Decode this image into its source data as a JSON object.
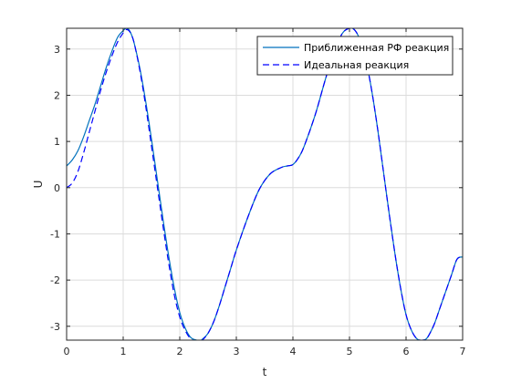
{
  "chart_data": {
    "type": "line",
    "title": "",
    "xlabel": "t",
    "ylabel": "U",
    "xlim": [
      0,
      7
    ],
    "ylim": [
      -3.3,
      3.45
    ],
    "xticks": [
      0,
      1,
      2,
      3,
      4,
      5,
      6,
      7
    ],
    "yticks": [
      -3,
      -2,
      -1,
      0,
      1,
      2,
      3
    ],
    "grid": true,
    "legend_position": "top-right",
    "series": [
      {
        "name": "Приближенная РФ реакция",
        "color": "#0072BD",
        "line_style": "solid",
        "x": [
          0,
          0.1,
          0.2,
          0.3,
          0.4,
          0.5,
          0.6,
          0.7,
          0.8,
          0.9,
          1.0,
          1.05,
          1.1,
          1.15,
          1.2,
          1.3,
          1.4,
          1.5,
          1.6,
          1.7,
          1.8,
          1.9,
          2.0,
          2.1,
          2.2,
          2.3,
          2.35,
          2.4,
          2.5,
          2.6,
          2.7,
          2.8,
          2.9,
          3.0,
          3.2,
          3.4,
          3.6,
          3.8,
          3.9,
          4.0,
          4.1,
          4.2,
          4.4,
          4.6,
          4.8,
          4.9,
          5.0,
          5.05,
          5.1,
          5.15,
          5.2,
          5.3,
          5.4,
          5.5,
          5.6,
          5.7,
          5.8,
          5.9,
          6.0,
          6.1,
          6.2,
          6.3,
          6.35,
          6.4,
          6.5,
          6.6,
          6.7,
          6.8,
          6.9,
          7.0
        ],
        "y": [
          0.47,
          0.6,
          0.8,
          1.1,
          1.45,
          1.8,
          2.2,
          2.6,
          2.95,
          3.25,
          3.4,
          3.45,
          3.42,
          3.3,
          3.1,
          2.55,
          1.85,
          1.05,
          0.2,
          -0.65,
          -1.45,
          -2.15,
          -2.7,
          -3.05,
          -3.25,
          -3.3,
          -3.32,
          -3.28,
          -3.15,
          -2.9,
          -2.55,
          -2.15,
          -1.75,
          -1.35,
          -0.65,
          -0.05,
          0.3,
          0.44,
          0.47,
          0.5,
          0.65,
          0.9,
          1.6,
          2.45,
          3.15,
          3.38,
          3.45,
          3.45,
          3.4,
          3.3,
          3.15,
          2.7,
          2.05,
          1.25,
          0.35,
          -0.55,
          -1.4,
          -2.15,
          -2.75,
          -3.1,
          -3.28,
          -3.3,
          -3.28,
          -3.2,
          -2.95,
          -2.6,
          -2.25,
          -1.9,
          -1.55,
          -1.5
        ]
      },
      {
        "name": "Идеальная реакция",
        "color": "#0000FF",
        "line_style": "dashed",
        "x": [
          0,
          0.1,
          0.2,
          0.3,
          0.4,
          0.5,
          0.6,
          0.7,
          0.8,
          0.9,
          1.0,
          1.05,
          1.1,
          1.15,
          1.2,
          1.3,
          1.4,
          1.5,
          1.6,
          1.7,
          1.8,
          1.9,
          2.0,
          2.1,
          2.2,
          2.3,
          2.35,
          2.4,
          2.5,
          2.6,
          2.7,
          2.8,
          2.9,
          3.0,
          3.2,
          3.4,
          3.6,
          3.8,
          3.9,
          4.0,
          4.1,
          4.2,
          4.4,
          4.6,
          4.8,
          4.9,
          5.0,
          5.05,
          5.1,
          5.15,
          5.2,
          5.3,
          5.4,
          5.5,
          5.6,
          5.7,
          5.8,
          5.9,
          6.0,
          6.1,
          6.2,
          6.3,
          6.35,
          6.4,
          6.5,
          6.6,
          6.7,
          6.8,
          6.9,
          7.0
        ],
        "y": [
          0.0,
          0.1,
          0.35,
          0.75,
          1.2,
          1.65,
          2.1,
          2.5,
          2.85,
          3.15,
          3.35,
          3.42,
          3.4,
          3.3,
          3.1,
          2.5,
          1.75,
          0.9,
          0.05,
          -0.8,
          -1.6,
          -2.3,
          -2.8,
          -3.1,
          -3.28,
          -3.32,
          -3.33,
          -3.3,
          -3.15,
          -2.9,
          -2.55,
          -2.15,
          -1.75,
          -1.35,
          -0.65,
          -0.05,
          0.3,
          0.44,
          0.47,
          0.5,
          0.65,
          0.9,
          1.6,
          2.45,
          3.15,
          3.38,
          3.45,
          3.45,
          3.4,
          3.3,
          3.15,
          2.7,
          2.05,
          1.25,
          0.35,
          -0.55,
          -1.4,
          -2.15,
          -2.75,
          -3.1,
          -3.28,
          -3.3,
          -3.28,
          -3.2,
          -2.95,
          -2.6,
          -2.25,
          -1.9,
          -1.55,
          -1.5
        ]
      }
    ]
  }
}
